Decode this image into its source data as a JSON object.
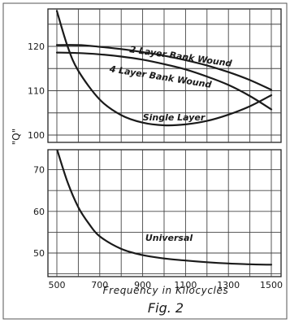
{
  "chart_data": [
    {
      "type": "line",
      "panel": "upper",
      "xlim": [
        500,
        1500
      ],
      "ylim": [
        100,
        130
      ],
      "y_ticks": [
        100,
        110,
        120
      ],
      "grid": true,
      "ylabel": "\"Q\"",
      "series": [
        {
          "name": "2 Layer Bank Wound",
          "x": [
            500,
            600,
            700,
            800,
            900,
            1000,
            1100,
            1200,
            1300,
            1400,
            1500
          ],
          "y": [
            120.3,
            120.3,
            119.9,
            119.4,
            118.7,
            117.9,
            116.9,
            115.7,
            114.2,
            112.4,
            110.2
          ]
        },
        {
          "name": "4 Layer Bank Wound",
          "x": [
            500,
            600,
            700,
            800,
            900,
            1000,
            1100,
            1200,
            1300,
            1400,
            1500
          ],
          "y": [
            118.6,
            118.5,
            118.2,
            117.7,
            117.0,
            116.0,
            114.8,
            113.2,
            111.3,
            108.8,
            105.8
          ]
        },
        {
          "name": "Single Layer",
          "x": [
            500,
            550,
            600,
            700,
            800,
            900,
            1000,
            1100,
            1200,
            1300,
            1400,
            1500
          ],
          "y": [
            128.0,
            120.0,
            114.5,
            108.0,
            104.5,
            102.8,
            102.2,
            102.4,
            103.2,
            104.6,
            106.5,
            109.0
          ]
        }
      ]
    },
    {
      "type": "line",
      "panel": "lower",
      "xlim": [
        500,
        1500
      ],
      "ylim": [
        45,
        80
      ],
      "y_ticks": [
        50,
        60,
        70
      ],
      "x_ticks": [
        500,
        700,
        900,
        1100,
        1300,
        1500
      ],
      "grid": true,
      "xlabel": "Frequency in Kilocycles",
      "series": [
        {
          "name": "Universal",
          "x": [
            500,
            550,
            600,
            650,
            700,
            800,
            900,
            1000,
            1100,
            1200,
            1300,
            1400,
            1500
          ],
          "y": [
            75.0,
            67.0,
            61.0,
            57.0,
            54.0,
            51.0,
            49.5,
            48.7,
            48.2,
            47.8,
            47.5,
            47.3,
            47.2
          ]
        }
      ]
    }
  ],
  "caption": "Fig. 2"
}
